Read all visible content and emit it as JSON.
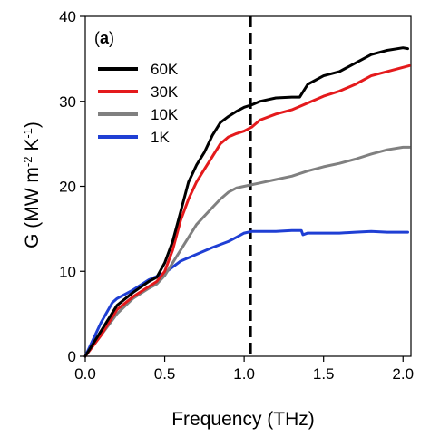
{
  "chart_data": {
    "type": "line",
    "panel_label": {
      "open": "(",
      "letter": "a",
      "close": ")"
    },
    "xlabel": "Frequency (THz)",
    "ylabel": {
      "main": "G (MW m",
      "exp1": "-2",
      "mid": " K",
      "exp2": "-1",
      "end": ")"
    },
    "xlim": [
      0.0,
      2.05
    ],
    "ylim": [
      0,
      40
    ],
    "xticks": [
      0.0,
      0.5,
      1.0,
      1.5,
      2.0
    ],
    "xtick_labels": [
      "0.0",
      "0.5",
      "1.0",
      "1.5",
      "2.0"
    ],
    "yticks": [
      0,
      10,
      20,
      30,
      40
    ],
    "ytick_labels": [
      "0",
      "10",
      "20",
      "30",
      "40"
    ],
    "grid": false,
    "legend_position": "top-left",
    "vline": {
      "x": 1.04,
      "style": "dashed",
      "color": "#000000"
    },
    "series": [
      {
        "name": "60K",
        "color": "#000000",
        "x": [
          0.0,
          0.1,
          0.2,
          0.3,
          0.4,
          0.45,
          0.5,
          0.55,
          0.6,
          0.65,
          0.7,
          0.75,
          0.8,
          0.85,
          0.9,
          0.95,
          1.0,
          1.05,
          1.1,
          1.2,
          1.3,
          1.35,
          1.4,
          1.5,
          1.6,
          1.7,
          1.8,
          1.9,
          2.0,
          2.03
        ],
        "y": [
          0,
          3,
          6,
          7.5,
          8.8,
          9.3,
          11,
          13.5,
          17,
          20.5,
          22.5,
          24,
          26,
          27.5,
          28.2,
          28.8,
          29.3,
          29.6,
          30,
          30.4,
          30.5,
          30.5,
          32,
          33,
          33.5,
          34.5,
          35.5,
          36,
          36.3,
          36.2
        ]
      },
      {
        "name": "30K",
        "color": "#e41a1c",
        "x": [
          0.0,
          0.1,
          0.2,
          0.3,
          0.4,
          0.45,
          0.5,
          0.55,
          0.6,
          0.65,
          0.7,
          0.75,
          0.8,
          0.85,
          0.9,
          0.95,
          1.0,
          1.05,
          1.1,
          1.2,
          1.3,
          1.4,
          1.5,
          1.6,
          1.7,
          1.8,
          1.9,
          2.0,
          2.04
        ],
        "y": [
          0,
          2.5,
          5.5,
          7,
          8.2,
          8.8,
          10,
          12.5,
          16,
          18.5,
          20.5,
          22,
          23.5,
          25,
          25.8,
          26.2,
          26.5,
          27,
          27.8,
          28.5,
          29,
          29.8,
          30.6,
          31.2,
          32,
          33,
          33.5,
          34,
          34.2
        ]
      },
      {
        "name": "10K",
        "color": "#808080",
        "x": [
          0.0,
          0.1,
          0.2,
          0.3,
          0.4,
          0.45,
          0.5,
          0.55,
          0.6,
          0.65,
          0.7,
          0.75,
          0.8,
          0.85,
          0.9,
          0.95,
          1.0,
          1.05,
          1.1,
          1.2,
          1.3,
          1.4,
          1.5,
          1.6,
          1.7,
          1.8,
          1.9,
          2.0,
          2.04
        ],
        "y": [
          0,
          2.5,
          5,
          6.8,
          8,
          8.5,
          9.5,
          11,
          12.5,
          14,
          15.5,
          16.5,
          17.5,
          18.5,
          19.3,
          19.8,
          20,
          20.2,
          20.4,
          20.8,
          21.2,
          21.8,
          22.3,
          22.7,
          23.2,
          23.8,
          24.3,
          24.6,
          24.6
        ]
      },
      {
        "name": "1K",
        "color": "#1f3fd4",
        "x": [
          0.0,
          0.1,
          0.17,
          0.2,
          0.3,
          0.4,
          0.5,
          0.55,
          0.6,
          0.7,
          0.8,
          0.9,
          0.95,
          1.0,
          1.05,
          1.1,
          1.2,
          1.3,
          1.36,
          1.37,
          1.4,
          1.5,
          1.6,
          1.7,
          1.8,
          1.9,
          2.0,
          2.03
        ],
        "y": [
          0,
          4,
          6.3,
          6.8,
          7.8,
          9,
          9.8,
          10.5,
          11.2,
          12,
          12.8,
          13.5,
          14,
          14.5,
          14.7,
          14.7,
          14.7,
          14.8,
          14.8,
          14.3,
          14.5,
          14.5,
          14.5,
          14.6,
          14.7,
          14.6,
          14.6,
          14.6
        ]
      }
    ]
  }
}
